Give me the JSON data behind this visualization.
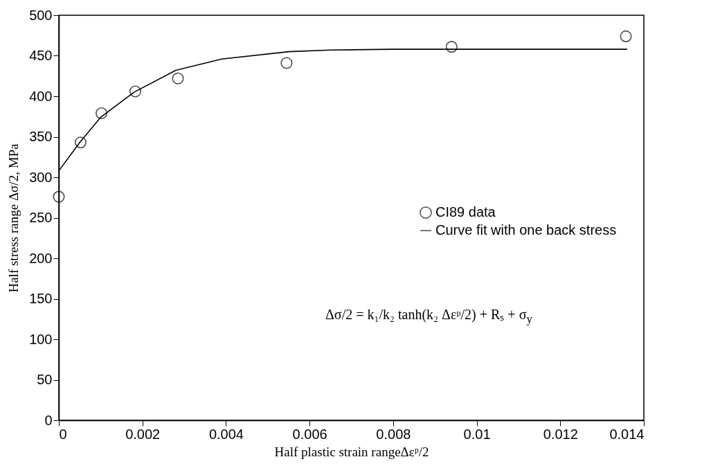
{
  "chart_data": {
    "type": "scatter",
    "xlabel": "Half plastic strain rangeΔεᵖ/2",
    "ylabel": "Half stress range Δσ/2, MPa",
    "xlim": [
      0,
      0.014
    ],
    "xticks": [
      0,
      0.002,
      0.004,
      0.006,
      0.008,
      0.01,
      0.012,
      0.014
    ],
    "ylim": [
      0,
      500
    ],
    "yticks": [
      0,
      50,
      100,
      150,
      200,
      250,
      300,
      350,
      400,
      450,
      500
    ],
    "legend": "right",
    "grid": false,
    "marker": "circle",
    "annotations": [
      "Δσ/2 = k₁/k₂ tanh(k₂ Δεᵖ/2) + Rₛ + σ$_{y}$"
    ],
    "series": [
      {
        "name": "CI89 data",
        "color": "#000000",
        "x": [
          0,
          0.00052,
          0.00102,
          0.00183,
          0.00285,
          0.00545,
          0.0094,
          0.01357
        ],
        "values": [
          276,
          343,
          379,
          406,
          422,
          441,
          461,
          474
        ]
      },
      {
        "name": "Curve fit with one back stress",
        "type": "line",
        "color": "#000000",
        "marker": "none",
        "line_style": "solid",
        "x": [
          0,
          0.0005,
          0.001,
          0.0018,
          0.0028,
          0.0039,
          0.0055,
          0.0065,
          0.008,
          0.01,
          0.0136
        ],
        "values": [
          308,
          343,
          374,
          405,
          432,
          446,
          455,
          457,
          458,
          458,
          458
        ]
      }
    ]
  }
}
